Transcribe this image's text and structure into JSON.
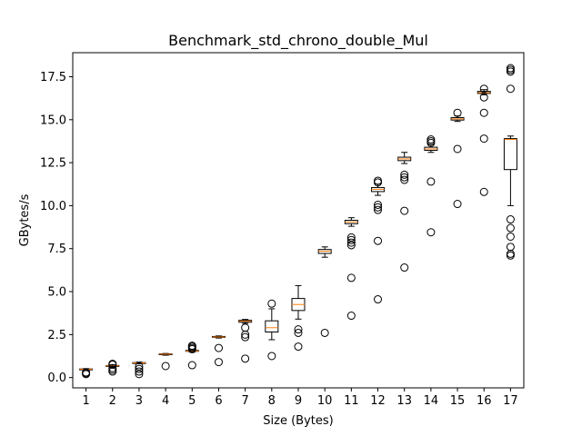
{
  "chart_data": {
    "type": "box",
    "title": "Benchmark_std_chrono_double_Mul",
    "xlabel": "Size (Bytes)",
    "ylabel": "GBytes/s",
    "ylim": [
      -0.6,
      18.9
    ],
    "yticks": [
      "0.0",
      "2.5",
      "5.0",
      "7.5",
      "10.0",
      "12.5",
      "15.0",
      "17.5"
    ],
    "categories": [
      "1",
      "2",
      "3",
      "4",
      "5",
      "6",
      "7",
      "8",
      "9",
      "10",
      "11",
      "12",
      "13",
      "14",
      "15",
      "16",
      "17"
    ],
    "boxes": [
      {
        "category": "1",
        "whislo": 0.44,
        "q1": 0.47,
        "med": 0.48,
        "q3": 0.5,
        "whishi": 0.52,
        "fliers": [
          0.2,
          0.25,
          0.3
        ]
      },
      {
        "category": "2",
        "whislo": 0.6,
        "q1": 0.66,
        "med": 0.68,
        "q3": 0.7,
        "whishi": 0.74,
        "fliers": [
          0.35,
          0.45,
          0.55,
          0.75,
          0.8
        ]
      },
      {
        "category": "3",
        "whislo": 0.8,
        "q1": 0.83,
        "med": 0.85,
        "q3": 0.87,
        "whishi": 0.9,
        "fliers": [
          0.2,
          0.35,
          0.5,
          0.65
        ]
      },
      {
        "category": "4",
        "whislo": 1.3,
        "q1": 1.34,
        "med": 1.36,
        "q3": 1.38,
        "whishi": 1.4,
        "fliers": [
          0.67
        ]
      },
      {
        "category": "5",
        "whislo": 1.48,
        "q1": 1.53,
        "med": 1.55,
        "q3": 1.58,
        "whishi": 1.62,
        "fliers": [
          0.72,
          1.65,
          1.72,
          1.8,
          1.85
        ]
      },
      {
        "category": "6",
        "whislo": 2.3,
        "q1": 2.34,
        "med": 2.36,
        "q3": 2.39,
        "whishi": 2.42,
        "fliers": [
          0.9,
          1.72
        ]
      },
      {
        "category": "7",
        "whislo": 3.15,
        "q1": 3.22,
        "med": 3.28,
        "q3": 3.33,
        "whishi": 3.38,
        "fliers": [
          1.1,
          2.35,
          2.5,
          2.9
        ]
      },
      {
        "category": "8",
        "whislo": 2.2,
        "q1": 2.65,
        "med": 2.9,
        "q3": 3.3,
        "whishi": 4.0,
        "fliers": [
          1.25,
          4.3
        ]
      },
      {
        "category": "9",
        "whislo": 3.4,
        "q1": 3.9,
        "med": 4.25,
        "q3": 4.6,
        "whishi": 5.35,
        "fliers": [
          1.8,
          2.6,
          2.8
        ]
      },
      {
        "category": "10",
        "whislo": 7.0,
        "q1": 7.22,
        "med": 7.35,
        "q3": 7.45,
        "whishi": 7.6,
        "fliers": [
          2.6
        ]
      },
      {
        "category": "11",
        "whislo": 8.8,
        "q1": 8.95,
        "med": 9.05,
        "q3": 9.15,
        "whishi": 9.3,
        "fliers": [
          3.6,
          5.8,
          7.7,
          7.85,
          8.0,
          8.15
        ]
      },
      {
        "category": "12",
        "whislo": 10.6,
        "q1": 10.82,
        "med": 10.95,
        "q3": 11.05,
        "whishi": 11.25,
        "fliers": [
          4.55,
          7.95,
          9.75,
          9.9,
          10.05,
          11.35,
          11.45
        ]
      },
      {
        "category": "13",
        "whislo": 12.45,
        "q1": 12.62,
        "med": 12.72,
        "q3": 12.82,
        "whishi": 13.1,
        "fliers": [
          6.4,
          9.7,
          11.5,
          11.65,
          11.8
        ]
      },
      {
        "category": "14",
        "whislo": 13.1,
        "q1": 13.22,
        "med": 13.3,
        "q3": 13.4,
        "whishi": 13.55,
        "fliers": [
          8.45,
          11.4,
          13.65,
          13.75,
          13.85
        ]
      },
      {
        "category": "15",
        "whislo": 14.9,
        "q1": 14.98,
        "med": 15.05,
        "q3": 15.12,
        "whishi": 15.22,
        "fliers": [
          10.1,
          13.3,
          15.4
        ]
      },
      {
        "category": "16",
        "whislo": 16.45,
        "q1": 16.53,
        "med": 16.58,
        "q3": 16.65,
        "whishi": 16.75,
        "fliers": [
          10.8,
          13.9,
          15.4,
          16.3,
          16.8
        ]
      },
      {
        "category": "17",
        "whislo": 10.0,
        "q1": 12.1,
        "med": 13.85,
        "q3": 13.9,
        "whishi": 14.05,
        "fliers": [
          7.1,
          7.2,
          7.6,
          8.2,
          8.7,
          9.2,
          16.8,
          17.8,
          17.9,
          18.0
        ]
      }
    ]
  }
}
